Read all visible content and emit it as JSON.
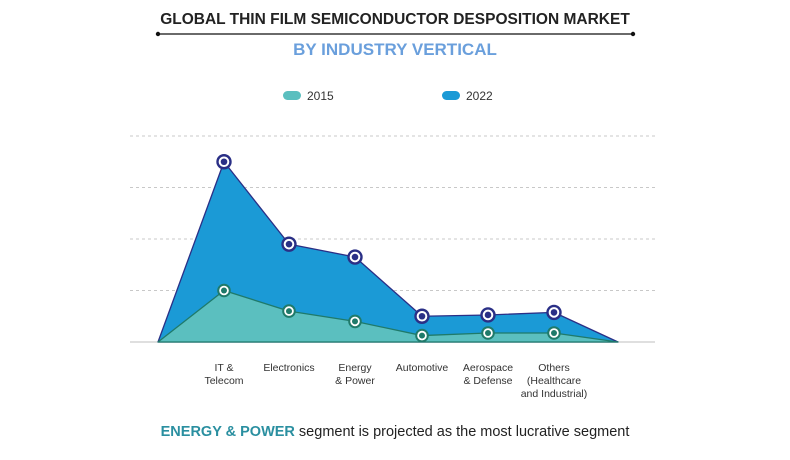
{
  "chart_data": {
    "type": "area",
    "title": "GLOBAL THIN FILM SEMICONDUCTOR DESPOSITION MARKET",
    "subtitle": "BY INDUSTRY VERTICAL",
    "categories": [
      [
        "IT &",
        "Telecom"
      ],
      [
        "Electronics"
      ],
      [
        "Energy",
        "& Power"
      ],
      [
        "Automotive"
      ],
      [
        "Aerospace",
        "& Defense"
      ],
      [
        "Others",
        "(Healthcare",
        "and Industrial)"
      ]
    ],
    "series": [
      {
        "name": "2015",
        "values": [
          2.0,
          1.2,
          0.8,
          0.25,
          0.35,
          0.35
        ]
      },
      {
        "name": "2022",
        "values": [
          7.0,
          3.8,
          3.3,
          1.0,
          1.05,
          1.15
        ]
      }
    ],
    "ylim": [
      0,
      8
    ],
    "grid": true,
    "legend_position": "top-center",
    "footer": {
      "highlight": "ENERGY & POWER",
      "text": " segment is projected as the most lucrative segment"
    }
  },
  "colors": {
    "series_2015_fill": "#5bbfbf",
    "series_2015_line": "#1f7a6a",
    "series_2022_fill": "#1b9ad6",
    "series_2022_line": "#2a2f86",
    "subtitle": "#6a9fdc",
    "footer_highlight": "#2a8fa0",
    "grid": "#c8c8c8"
  }
}
